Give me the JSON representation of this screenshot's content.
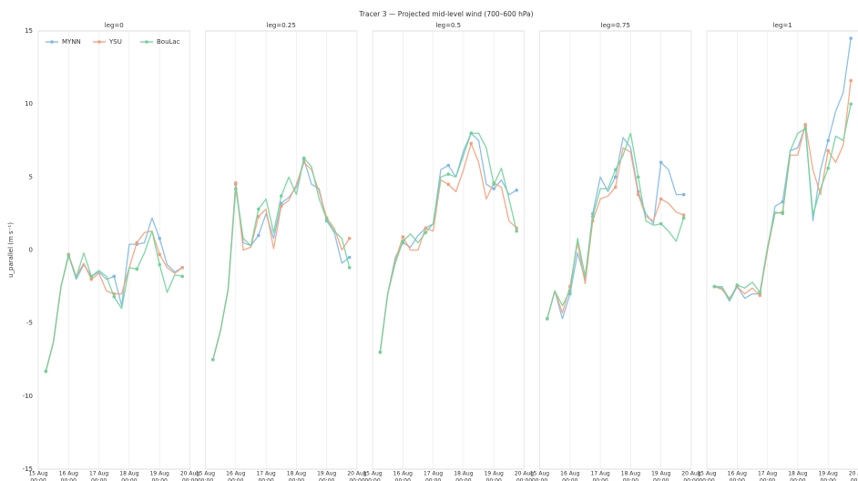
{
  "title": "Tracer 3 — Projected mid-level wind (700–600 hPa)",
  "chart_data": [
    {
      "type": "line",
      "title": "leg=0",
      "ylabel": "u_parallel (m s⁻¹)",
      "legend": "upper left",
      "grid": "x",
      "marker_every": 3,
      "x": [
        6,
        12,
        18,
        24,
        30,
        36,
        42,
        48,
        54,
        60,
        66,
        72,
        78,
        84,
        90,
        96,
        102,
        108,
        114
      ],
      "xlim": [
        0,
        120
      ],
      "xticks": [
        {
          "value": 0,
          "label": "15 Aug"
        },
        {
          "value": 24,
          "label": "16 Aug"
        },
        {
          "value": 48,
          "label": "17 Aug"
        },
        {
          "value": 72,
          "label": "18 Aug"
        },
        {
          "value": 96,
          "label": "19 Aug"
        },
        {
          "value": 120,
          "label": "20 Aug"
        }
      ],
      "xtick_time": "00:00",
      "ylim": [
        -15,
        15
      ],
      "yticks": [
        -15,
        -10,
        -5,
        0,
        5,
        10,
        15
      ],
      "series": [
        {
          "name": "MYNN",
          "color": "#7fb8e6",
          "values": [
            -8.3,
            -6.3,
            -2.5,
            -0.3,
            -2.0,
            -1.0,
            -1.8,
            -1.5,
            -2.0,
            -1.8,
            -3.8,
            0.4,
            0.4,
            0.5,
            2.2,
            0.8,
            -1.0,
            -1.5,
            -1.2
          ]
        },
        {
          "name": "YSU",
          "color": "#f4a07a",
          "values": [
            -8.3,
            -6.3,
            -2.5,
            -0.3,
            -1.8,
            -0.9,
            -2.0,
            -1.6,
            -2.8,
            -3.0,
            -3.0,
            -1.2,
            0.5,
            1.2,
            1.3,
            -0.3,
            -1.2,
            -1.6,
            -1.2
          ]
        },
        {
          "name": "BouLac",
          "color": "#6fd39a",
          "values": [
            -8.3,
            -6.3,
            -2.5,
            -0.4,
            -1.9,
            -0.2,
            -1.8,
            -1.4,
            -1.8,
            -3.2,
            -4.0,
            -1.2,
            -1.3,
            -0.2,
            1.3,
            -1.0,
            -2.9,
            -1.7,
            -1.8
          ]
        }
      ]
    },
    {
      "type": "line",
      "title": "leg=0.25",
      "grid": "x",
      "marker_every": 3,
      "x": [
        6,
        12,
        18,
        24,
        30,
        36,
        42,
        48,
        54,
        60,
        66,
        72,
        78,
        84,
        90,
        96,
        102,
        108,
        114
      ],
      "xlim": [
        0,
        120
      ],
      "xticks": [
        {
          "value": 0,
          "label": "15 Aug"
        },
        {
          "value": 24,
          "label": "16 Aug"
        },
        {
          "value": 48,
          "label": "17 Aug"
        },
        {
          "value": 72,
          "label": "18 Aug"
        },
        {
          "value": 96,
          "label": "19 Aug"
        },
        {
          "value": 120,
          "label": "20 Aug"
        }
      ],
      "xtick_time": "00:00",
      "ylim": [
        -15,
        15
      ],
      "series": [
        {
          "name": "MYNN",
          "color": "#7fb8e6",
          "values": [
            -7.5,
            -5.5,
            -2.7,
            4.5,
            0.5,
            0.3,
            1.0,
            2.5,
            0.8,
            3.2,
            3.6,
            4.3,
            6.2,
            4.5,
            4.2,
            2.0,
            1.2,
            -0.9,
            -0.5
          ]
        },
        {
          "name": "YSU",
          "color": "#f4a07a",
          "values": [
            -7.5,
            -5.5,
            -2.7,
            4.6,
            0.0,
            0.2,
            2.3,
            2.8,
            0.1,
            3.0,
            3.4,
            4.5,
            6.0,
            5.5,
            4.0,
            2.2,
            1.5,
            0.0,
            0.8
          ]
        },
        {
          "name": "BouLac",
          "color": "#6fd39a",
          "values": [
            -7.5,
            -5.5,
            -2.7,
            4.2,
            0.8,
            0.3,
            2.8,
            3.5,
            1.2,
            3.7,
            5.0,
            3.8,
            6.3,
            5.7,
            3.5,
            2.1,
            1.3,
            0.8,
            -1.2
          ]
        }
      ]
    },
    {
      "type": "line",
      "title": "leg=0.5",
      "grid": "x",
      "marker_every": 3,
      "x": [
        6,
        12,
        18,
        24,
        30,
        36,
        42,
        48,
        54,
        60,
        66,
        72,
        78,
        84,
        90,
        96,
        102,
        108,
        114
      ],
      "xlim": [
        0,
        120
      ],
      "xticks": [
        {
          "value": 0,
          "label": "15 Aug"
        },
        {
          "value": 24,
          "label": "16 Aug"
        },
        {
          "value": 48,
          "label": "17 Aug"
        },
        {
          "value": 72,
          "label": "18 Aug"
        },
        {
          "value": 96,
          "label": "19 Aug"
        },
        {
          "value": 120,
          "label": "20 Aug"
        }
      ],
      "xtick_time": "00:00",
      "ylim": [
        -15,
        15
      ],
      "series": [
        {
          "name": "MYNN",
          "color": "#7fb8e6",
          "values": [
            -7.0,
            -3.0,
            -0.5,
            0.5,
            0.2,
            1.0,
            1.5,
            1.8,
            5.5,
            5.8,
            5.0,
            6.8,
            8.0,
            7.5,
            4.5,
            4.2,
            4.8,
            3.8,
            4.1
          ]
        },
        {
          "name": "YSU",
          "color": "#f4a07a",
          "values": [
            -7.0,
            -3.0,
            -0.7,
            0.9,
            0.0,
            0.0,
            1.5,
            1.3,
            4.8,
            4.5,
            4.0,
            5.5,
            7.3,
            6.0,
            3.5,
            4.6,
            4.3,
            2.0,
            1.5
          ]
        },
        {
          "name": "BouLac",
          "color": "#6fd39a",
          "values": [
            -7.0,
            -3.0,
            -0.9,
            0.6,
            1.1,
            0.5,
            1.2,
            1.8,
            5.0,
            5.2,
            5.0,
            6.5,
            8.0,
            8.0,
            7.0,
            4.5,
            5.6,
            3.5,
            1.3
          ]
        }
      ]
    },
    {
      "type": "line",
      "title": "leg=0.75",
      "grid": "x",
      "marker_every": 3,
      "x": [
        6,
        12,
        18,
        24,
        30,
        36,
        42,
        48,
        54,
        60,
        66,
        72,
        78,
        84,
        90,
        96,
        102,
        108,
        114
      ],
      "xlim": [
        0,
        120
      ],
      "xticks": [
        {
          "value": 0,
          "label": "15 Aug"
        },
        {
          "value": 24,
          "label": "16 Aug"
        },
        {
          "value": 48,
          "label": "17 Aug"
        },
        {
          "value": 72,
          "label": "18 Aug"
        },
        {
          "value": 96,
          "label": "19 Aug"
        },
        {
          "value": 120,
          "label": "20 Aug"
        }
      ],
      "xtick_time": "00:00",
      "ylim": [
        -15,
        15
      ],
      "series": [
        {
          "name": "MYNN",
          "color": "#7fb8e6",
          "values": [
            -4.7,
            -2.8,
            -4.7,
            -3.0,
            -0.2,
            -2.0,
            2.5,
            5.0,
            4.0,
            5.0,
            7.7,
            7.0,
            4.0,
            2.5,
            1.8,
            6.0,
            5.5,
            3.8,
            3.8
          ]
        },
        {
          "name": "YSU",
          "color": "#f4a07a",
          "values": [
            -4.7,
            -2.8,
            -4.3,
            -2.5,
            0.5,
            -2.3,
            2.0,
            3.5,
            3.7,
            4.3,
            7.0,
            6.7,
            3.8,
            2.3,
            2.0,
            3.5,
            3.2,
            2.6,
            2.4
          ]
        },
        {
          "name": "BouLac",
          "color": "#6fd39a",
          "values": [
            -4.7,
            -2.8,
            -3.8,
            -2.8,
            0.8,
            -1.8,
            2.3,
            4.2,
            4.2,
            5.5,
            6.5,
            8.0,
            5.0,
            2.0,
            1.7,
            1.8,
            1.3,
            0.6,
            2.2
          ]
        }
      ]
    },
    {
      "type": "line",
      "title": "leg=1",
      "grid": "x",
      "marker_every": 3,
      "x": [
        6,
        12,
        18,
        24,
        30,
        36,
        42,
        48,
        54,
        60,
        66,
        72,
        78,
        84,
        90,
        96,
        102,
        108,
        114
      ],
      "xlim": [
        0,
        120
      ],
      "xticks": [
        {
          "value": 0,
          "label": "15 Aug"
        },
        {
          "value": 24,
          "label": "16 Aug"
        },
        {
          "value": 48,
          "label": "17 Aug"
        },
        {
          "value": 72,
          "label": "18 Aug"
        },
        {
          "value": 96,
          "label": "19 Aug"
        },
        {
          "value": 120,
          "label": "20 Aug"
        }
      ],
      "xtick_time": "00:00",
      "ylim": [
        -15,
        15
      ],
      "series": [
        {
          "name": "MYNN",
          "color": "#7fb8e6",
          "values": [
            -2.5,
            -2.6,
            -3.5,
            -2.5,
            -3.3,
            -3.0,
            -3.0,
            0.0,
            3.0,
            3.3,
            6.8,
            7.0,
            8.5,
            2.0,
            5.5,
            7.5,
            9.5,
            10.8,
            14.5
          ]
        },
        {
          "name": "YSU",
          "color": "#f4a07a",
          "values": [
            -2.5,
            -2.7,
            -3.3,
            -2.5,
            -3.0,
            -2.6,
            -3.1,
            0.0,
            2.5,
            2.6,
            6.5,
            6.5,
            8.6,
            5.5,
            3.8,
            6.8,
            6.0,
            7.2,
            11.6
          ]
        },
        {
          "name": "BouLac",
          "color": "#6fd39a",
          "values": [
            -2.5,
            -2.5,
            -3.4,
            -2.4,
            -2.6,
            -2.2,
            -2.9,
            0.2,
            2.6,
            2.5,
            6.8,
            8.0,
            8.3,
            2.4,
            4.2,
            5.6,
            7.8,
            7.5,
            10.0
          ]
        }
      ]
    }
  ]
}
